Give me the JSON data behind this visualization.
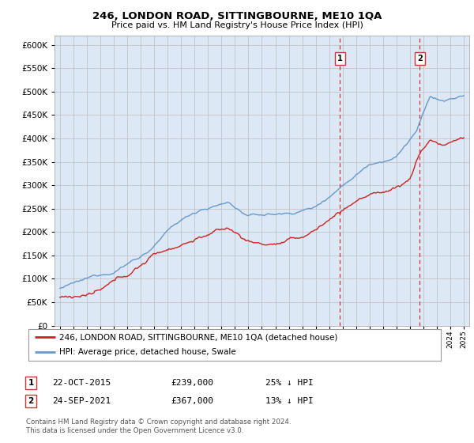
{
  "title": "246, LONDON ROAD, SITTINGBOURNE, ME10 1QA",
  "subtitle": "Price paid vs. HM Land Registry's House Price Index (HPI)",
  "ylim": [
    0,
    620000
  ],
  "ytick_values": [
    0,
    50000,
    100000,
    150000,
    200000,
    250000,
    300000,
    350000,
    400000,
    450000,
    500000,
    550000,
    600000
  ],
  "hpi_color": "#6699cc",
  "price_color": "#cc2222",
  "legend_house_label": "246, LONDON ROAD, SITTINGBOURNE, ME10 1QA (detached house)",
  "legend_hpi_label": "HPI: Average price, detached house, Swale",
  "footer": "Contains HM Land Registry data © Crown copyright and database right 2024.\nThis data is licensed under the Open Government Licence v3.0.",
  "background_color": "#dce8f5",
  "plot_bg_color": "#ffffff",
  "grid_color": "#bbbbbb",
  "m1_year": 2015.8,
  "m2_year": 2021.72,
  "m1_price": 239000,
  "m2_price": 367000
}
